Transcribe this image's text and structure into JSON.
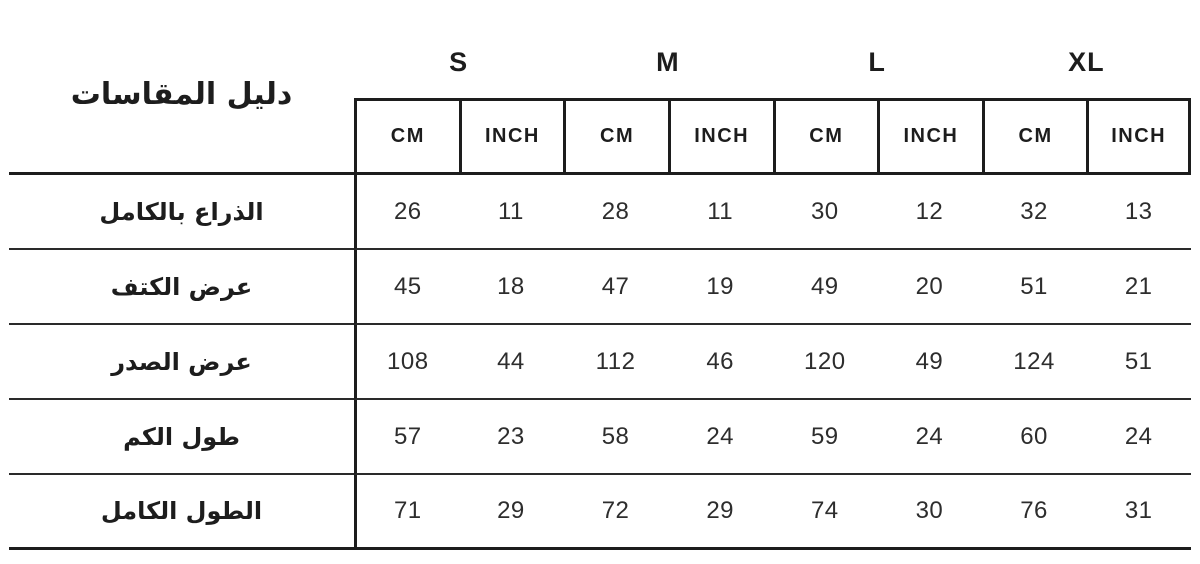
{
  "chart_data": {
    "type": "table",
    "title": "دليل المقاسات",
    "column_groups": [
      "S",
      "M",
      "L",
      "XL"
    ],
    "units": {
      "cm": "CM",
      "inch": "INCH"
    },
    "columns": [
      "S CM",
      "S INCH",
      "M CM",
      "M INCH",
      "L CM",
      "L INCH",
      "XL CM",
      "XL INCH"
    ],
    "rows": [
      {
        "label": "الذراع بالكامل",
        "values": [
          26,
          11,
          28,
          11,
          30,
          12,
          32,
          13
        ]
      },
      {
        "label": "عرض الكتف",
        "values": [
          45,
          18,
          47,
          19,
          49,
          20,
          51,
          21
        ]
      },
      {
        "label": "عرض الصدر",
        "values": [
          108,
          44,
          112,
          46,
          120,
          49,
          124,
          51
        ]
      },
      {
        "label": "طول الكم",
        "values": [
          57,
          23,
          58,
          24,
          59,
          24,
          60,
          24
        ]
      },
      {
        "label": "الطول الكامل",
        "values": [
          71,
          29,
          72,
          29,
          74,
          30,
          76,
          31
        ]
      }
    ],
    "layout": {
      "grid": "horizontal-row-separators",
      "header_boxed": true,
      "direction": "rtl-labels"
    }
  },
  "colors": {
    "background": "#ffffff",
    "border": "#1d1d1d",
    "row_line": "#2a2a2a",
    "text": "#1d1d1d"
  }
}
